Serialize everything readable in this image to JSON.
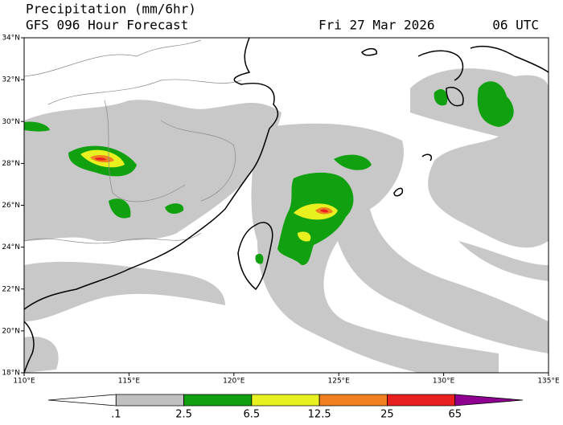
{
  "header": {
    "title": "Precipitation (mm/6hr)",
    "subtitle": "GFS 096 Hour Forecast",
    "date": "Fri 27 Mar 2026",
    "time": "06 UTC"
  },
  "map": {
    "lat_labels": [
      "34°N",
      "32°N",
      "30°N",
      "28°N",
      "26°N",
      "24°N",
      "22°N",
      "20°N",
      "18°N"
    ],
    "lon_labels": [
      "110°E",
      "115°E",
      "120°E",
      "125°E",
      "130°E",
      "135°E"
    ]
  },
  "colorbar": {
    "labels": [
      ".1",
      "2.5",
      "6.5",
      "12.5",
      "25",
      "65"
    ],
    "colors": [
      "#ffffff",
      "#c0c0c0",
      "#10a010",
      "#e8f020",
      "#f08020",
      "#e82020",
      "#900090"
    ]
  }
}
